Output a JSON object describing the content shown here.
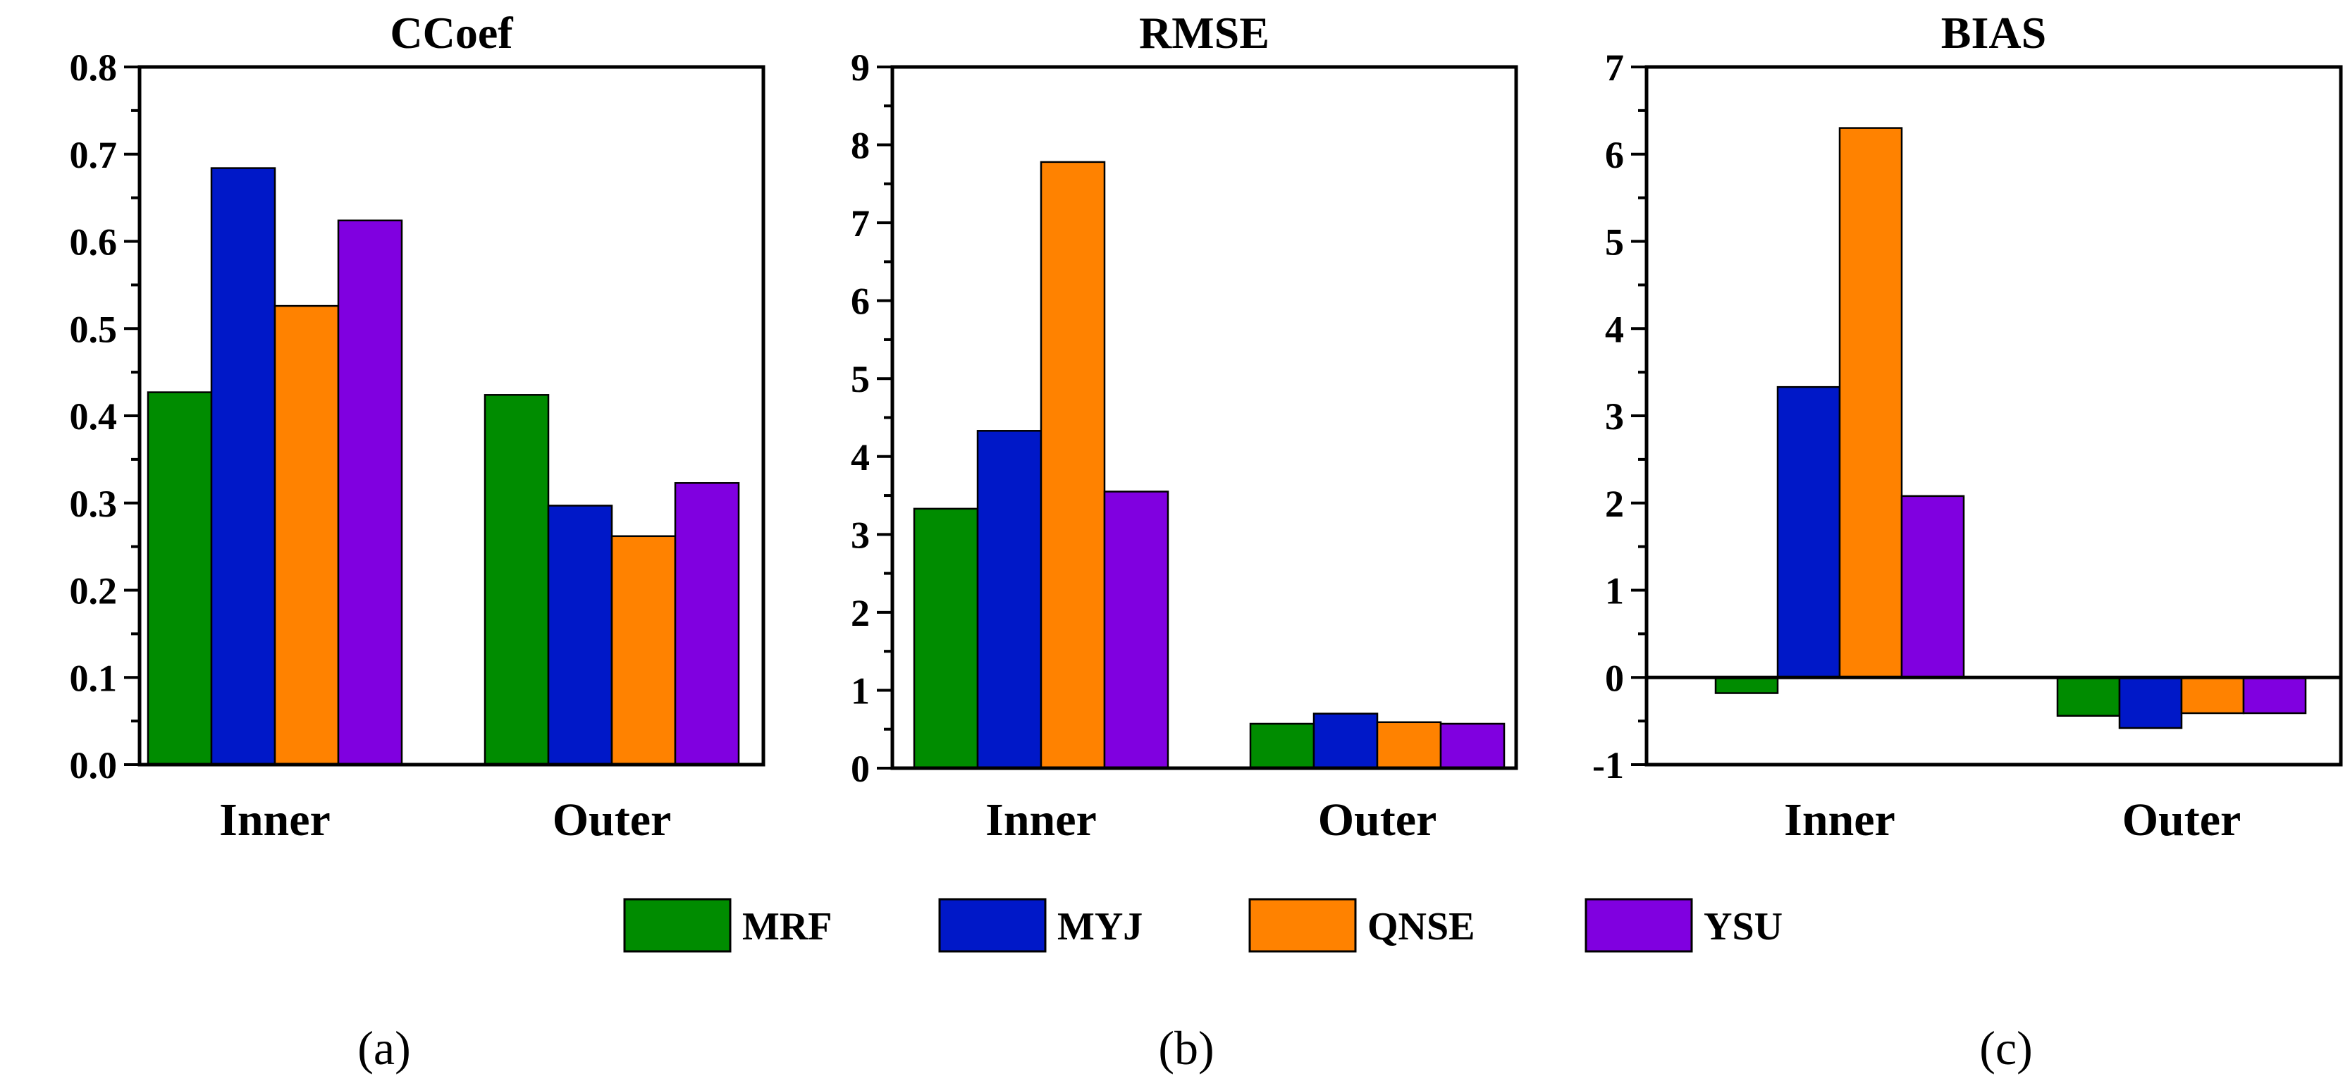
{
  "chart_data": [
    {
      "type": "bar",
      "title": "CCoef",
      "categories": [
        "Inner",
        "Outer"
      ],
      "ylim": [
        0,
        0.8
      ],
      "yticks": [
        "0.0",
        "0.1",
        "0.2",
        "0.3",
        "0.4",
        "0.5",
        "0.6",
        "0.7",
        "0.8"
      ],
      "series": [
        {
          "name": "MRF",
          "values": [
            0.427,
            0.424
          ]
        },
        {
          "name": "MYJ",
          "values": [
            0.684,
            0.297
          ]
        },
        {
          "name": "QNSE",
          "values": [
            0.526,
            0.262
          ]
        },
        {
          "name": "YSU",
          "values": [
            0.624,
            0.323
          ]
        }
      ],
      "panel_label": "(a)"
    },
    {
      "type": "bar",
      "title": "RMSE",
      "categories": [
        "Inner",
        "Outer"
      ],
      "ylim": [
        0,
        9
      ],
      "yticks": [
        "0",
        "1",
        "2",
        "3",
        "4",
        "5",
        "6",
        "7",
        "8",
        "9"
      ],
      "series": [
        {
          "name": "MRF",
          "values": [
            3.33,
            0.57
          ]
        },
        {
          "name": "MYJ",
          "values": [
            4.33,
            0.7
          ]
        },
        {
          "name": "QNSE",
          "values": [
            7.78,
            0.59
          ]
        },
        {
          "name": "YSU",
          "values": [
            3.55,
            0.57
          ]
        }
      ],
      "panel_label": "(b)"
    },
    {
      "type": "bar",
      "title": "BIAS",
      "categories": [
        "Inner",
        "Outer"
      ],
      "ylim": [
        -1,
        7
      ],
      "yticks": [
        "-1",
        "0",
        "1",
        "2",
        "3",
        "4",
        "5",
        "6",
        "7"
      ],
      "series": [
        {
          "name": "MRF",
          "values": [
            -0.18,
            -0.44
          ]
        },
        {
          "name": "MYJ",
          "values": [
            3.33,
            -0.58
          ]
        },
        {
          "name": "QNSE",
          "values": [
            6.3,
            -0.41
          ]
        },
        {
          "name": "YSU",
          "values": [
            2.08,
            -0.41
          ]
        }
      ],
      "panel_label": "(c)"
    }
  ],
  "legend": [
    {
      "name": "MRF",
      "color": "#008c00"
    },
    {
      "name": "MYJ",
      "color": "#0018c8"
    },
    {
      "name": "QNSE",
      "color": "#ff8200"
    },
    {
      "name": "YSU",
      "color": "#8000e0"
    }
  ]
}
